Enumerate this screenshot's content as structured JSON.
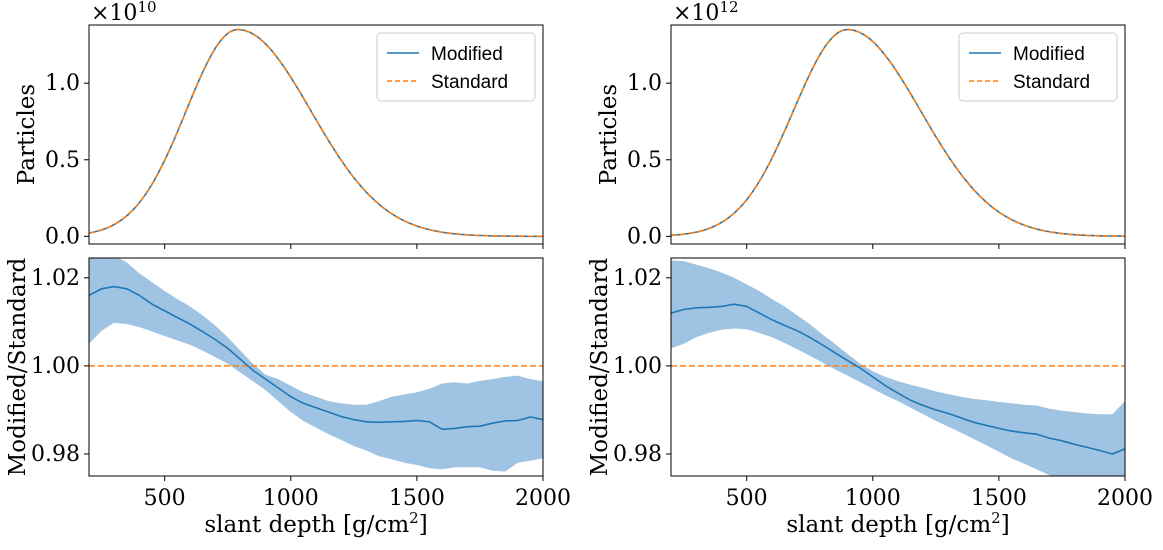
{
  "chart_data": [
    {
      "type": "line",
      "panel": "top-left",
      "ylabel": "Particles",
      "multiplier": {
        "base": "×10",
        "exp": "10"
      },
      "xlim": [
        200,
        2000
      ],
      "ylim": [
        -0.05,
        1.38
      ],
      "yticks": [
        {
          "v": 0.0,
          "label": "0.0"
        },
        {
          "v": 0.5,
          "label": "0.5"
        },
        {
          "v": 1.0,
          "label": "1.0"
        }
      ],
      "legend": {
        "placement": "top-right",
        "entries": [
          "Modified",
          "Standard"
        ]
      },
      "profile": {
        "xmax": 790,
        "ymax": 1.35,
        "wl": 205,
        "wr": 290
      },
      "series": [
        {
          "name": "Modified",
          "color": "#1f77b4",
          "style": "solid"
        },
        {
          "name": "Standard",
          "color": "#ff7f0e",
          "style": "dashed"
        }
      ]
    },
    {
      "type": "line",
      "panel": "top-right",
      "ylabel": "Particles",
      "multiplier": {
        "base": "×10",
        "exp": "12"
      },
      "xlim": [
        200,
        2000
      ],
      "ylim": [
        -0.05,
        1.38
      ],
      "yticks": [
        {
          "v": 0.0,
          "label": "0.0"
        },
        {
          "v": 0.5,
          "label": "0.5"
        },
        {
          "v": 1.0,
          "label": "1.0"
        }
      ],
      "legend": {
        "placement": "top-right",
        "entries": [
          "Modified",
          "Standard"
        ]
      },
      "profile": {
        "xmax": 900,
        "ymax": 1.35,
        "wl": 215,
        "wr": 290
      },
      "series": [
        {
          "name": "Modified",
          "color": "#1f77b4",
          "style": "solid"
        },
        {
          "name": "Standard",
          "color": "#ff7f0e",
          "style": "dashed"
        }
      ]
    },
    {
      "type": "area",
      "panel": "bottom-left",
      "xlabel": "slant depth [g/cm",
      "xlabel_sup": "2",
      "xlabel_end": "]",
      "ylabel": "Modified/Standard",
      "xlim": [
        200,
        2000
      ],
      "ylim": [
        0.975,
        1.0245
      ],
      "xticks": [
        {
          "v": 500,
          "label": "500"
        },
        {
          "v": 1000,
          "label": "1000"
        },
        {
          "v": 1500,
          "label": "1500"
        },
        {
          "v": 2000,
          "label": "2000"
        }
      ],
      "yticks": [
        {
          "v": 0.98,
          "label": "0.98"
        },
        {
          "v": 1.0,
          "label": "1.00"
        },
        {
          "v": 1.02,
          "label": "1.02"
        }
      ],
      "reference_line": 1.0,
      "x": [
        200,
        250,
        300,
        350,
        400,
        450,
        500,
        550,
        600,
        650,
        700,
        750,
        800,
        850,
        900,
        950,
        1000,
        1050,
        1100,
        1150,
        1200,
        1250,
        1300,
        1350,
        1400,
        1450,
        1500,
        1550,
        1600,
        1650,
        1700,
        1750,
        1800,
        1850,
        1900,
        1950,
        2000
      ],
      "ratio": [
        1.016,
        1.0175,
        1.018,
        1.0175,
        1.016,
        1.014,
        1.0125,
        1.011,
        1.0095,
        1.0078,
        1.006,
        1.004,
        1.0015,
        0.999,
        0.997,
        0.995,
        0.993,
        0.9915,
        0.9905,
        0.9895,
        0.9885,
        0.9878,
        0.9873,
        0.9872,
        0.9873,
        0.9874,
        0.9876,
        0.9873,
        0.9856,
        0.9858,
        0.9862,
        0.9863,
        0.987,
        0.9875,
        0.9876,
        0.9884,
        0.9878
      ],
      "upper": [
        1.026,
        1.0265,
        1.025,
        1.0235,
        1.021,
        1.019,
        1.017,
        1.0152,
        1.0135,
        1.0115,
        1.0092,
        1.0065,
        1.0035,
        1.0005,
        0.998,
        0.997,
        0.9955,
        0.994,
        0.993,
        0.992,
        0.9915,
        0.9912,
        0.9912,
        0.992,
        0.993,
        0.9935,
        0.994,
        0.9948,
        0.996,
        0.9963,
        0.996,
        0.9966,
        0.997,
        0.9975,
        0.9978,
        0.997,
        0.9965
      ],
      "lower": [
        1.005,
        1.008,
        1.0098,
        1.0095,
        1.0088,
        1.0078,
        1.0068,
        1.0058,
        1.0048,
        1.0035,
        1.002,
        1.0005,
        0.9985,
        0.9965,
        0.9945,
        0.992,
        0.9895,
        0.9875,
        0.986,
        0.9845,
        0.9832,
        0.9818,
        0.9808,
        0.9795,
        0.9788,
        0.978,
        0.9775,
        0.9768,
        0.9765,
        0.977,
        0.977,
        0.977,
        0.9762,
        0.976,
        0.978,
        0.9785,
        0.979
      ],
      "series": [
        {
          "name": "Modified/Standard",
          "color": "#1f77b4",
          "band_color": "#9fc4e3"
        },
        {
          "name": "reference",
          "color": "#ff7f0e",
          "style": "dashed"
        }
      ]
    },
    {
      "type": "area",
      "panel": "bottom-right",
      "xlabel": "slant depth [g/cm",
      "xlabel_sup": "2",
      "xlabel_end": "]",
      "ylabel": "Modified/Standard",
      "xlim": [
        200,
        2000
      ],
      "ylim": [
        0.975,
        1.0245
      ],
      "xticks": [
        {
          "v": 500,
          "label": "500"
        },
        {
          "v": 1000,
          "label": "1000"
        },
        {
          "v": 1500,
          "label": "1500"
        },
        {
          "v": 2000,
          "label": "2000"
        }
      ],
      "yticks": [
        {
          "v": 0.98,
          "label": "0.98"
        },
        {
          "v": 1.0,
          "label": "1.00"
        },
        {
          "v": 1.02,
          "label": "1.02"
        }
      ],
      "reference_line": 1.0,
      "x": [
        200,
        250,
        300,
        350,
        400,
        450,
        500,
        550,
        600,
        650,
        700,
        750,
        800,
        850,
        900,
        950,
        1000,
        1050,
        1100,
        1150,
        1200,
        1250,
        1300,
        1350,
        1400,
        1450,
        1500,
        1550,
        1600,
        1650,
        1700,
        1750,
        1800,
        1850,
        1900,
        1950,
        2000
      ],
      "ratio": [
        1.012,
        1.0128,
        1.0132,
        1.0133,
        1.0135,
        1.014,
        1.0135,
        1.012,
        1.0105,
        1.0092,
        1.008,
        1.0065,
        1.0048,
        1.003,
        1.0012,
        0.9995,
        0.9975,
        0.9955,
        0.9938,
        0.9922,
        0.991,
        0.99,
        0.9892,
        0.9882,
        0.9872,
        0.9865,
        0.9858,
        0.9852,
        0.9848,
        0.9845,
        0.9836,
        0.983,
        0.9822,
        0.9815,
        0.9808,
        0.98,
        0.9812
      ],
      "upper": [
        1.024,
        1.0238,
        1.023,
        1.0222,
        1.0212,
        1.02,
        1.0185,
        1.017,
        1.0152,
        1.0135,
        1.0115,
        1.0095,
        1.0072,
        1.005,
        1.0027,
        1.0005,
        0.9988,
        0.9975,
        0.9965,
        0.9957,
        0.995,
        0.9942,
        0.9936,
        0.993,
        0.9925,
        0.9922,
        0.9918,
        0.9915,
        0.9912,
        0.991,
        0.9903,
        0.9898,
        0.9895,
        0.9892,
        0.989,
        0.989,
        0.992
      ],
      "lower": [
        1.004,
        1.005,
        1.0065,
        1.0075,
        1.0082,
        1.0085,
        1.0083,
        1.0075,
        1.0065,
        1.0052,
        1.0038,
        1.0023,
        1.0008,
        0.9992,
        0.9978,
        0.9963,
        0.9948,
        0.9933,
        0.992,
        0.9905,
        0.989,
        0.9875,
        0.9862,
        0.9848,
        0.9834,
        0.982,
        0.9805,
        0.979,
        0.9778,
        0.9765,
        0.9752,
        0.974,
        0.973,
        0.972,
        0.971,
        0.97,
        0.971
      ],
      "series": [
        {
          "name": "Modified/Standard",
          "color": "#1f77b4",
          "band_color": "#9fc4e3"
        },
        {
          "name": "reference",
          "color": "#ff7f0e",
          "style": "dashed"
        }
      ]
    }
  ]
}
